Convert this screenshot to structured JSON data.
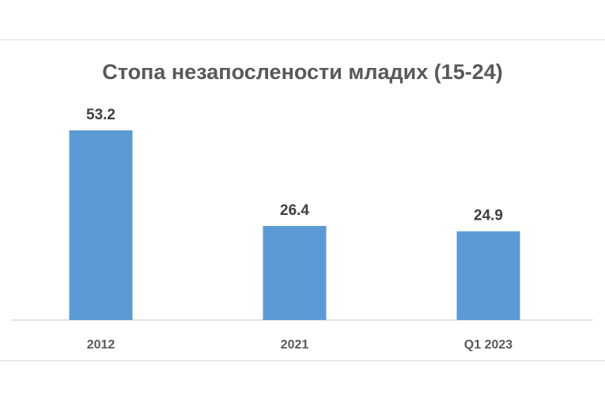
{
  "chart_data": {
    "type": "bar",
    "title": "Стопа незапослености младих (15-24)",
    "categories": [
      "2012",
      "2021",
      "Q1 2023"
    ],
    "values": [
      53.2,
      26.4,
      24.9
    ],
    "value_labels": [
      "53.2",
      "26.4",
      "24.9"
    ],
    "xlabel": "",
    "ylabel": "",
    "ylim": [
      0,
      53.2
    ],
    "grid": false,
    "legend": "none",
    "bar_color": "#5b9bd5",
    "label_color": "#404040",
    "axis_color": "#d9d9d9"
  }
}
